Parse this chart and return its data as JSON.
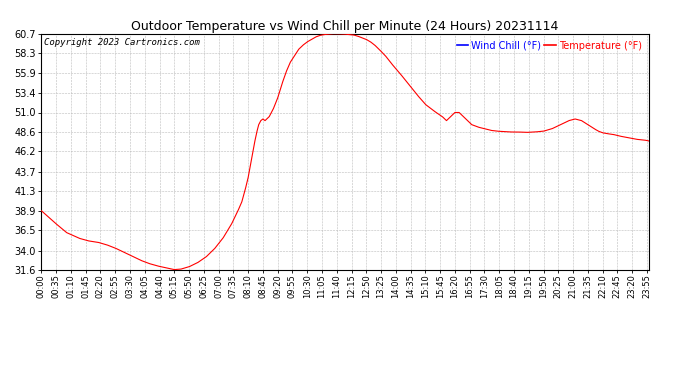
{
  "title": "Outdoor Temperature vs Wind Chill per Minute (24 Hours) 20231114",
  "copyright": "Copyright 2023 Cartronics.com",
  "wind_chill_label": "Wind Chill (°F)",
  "temp_label": "Temperature (°F)",
  "wind_chill_color": "blue",
  "temp_color": "red",
  "line_color": "red",
  "background_color": "white",
  "grid_color": "#bbbbbb",
  "ylim": [
    31.6,
    60.7
  ],
  "yticks": [
    31.6,
    34.0,
    36.5,
    38.9,
    41.3,
    43.7,
    46.2,
    48.6,
    51.0,
    53.4,
    55.9,
    58.3,
    60.7
  ],
  "total_minutes": 1440,
  "figwidth": 6.9,
  "figheight": 3.75,
  "dpi": 100
}
